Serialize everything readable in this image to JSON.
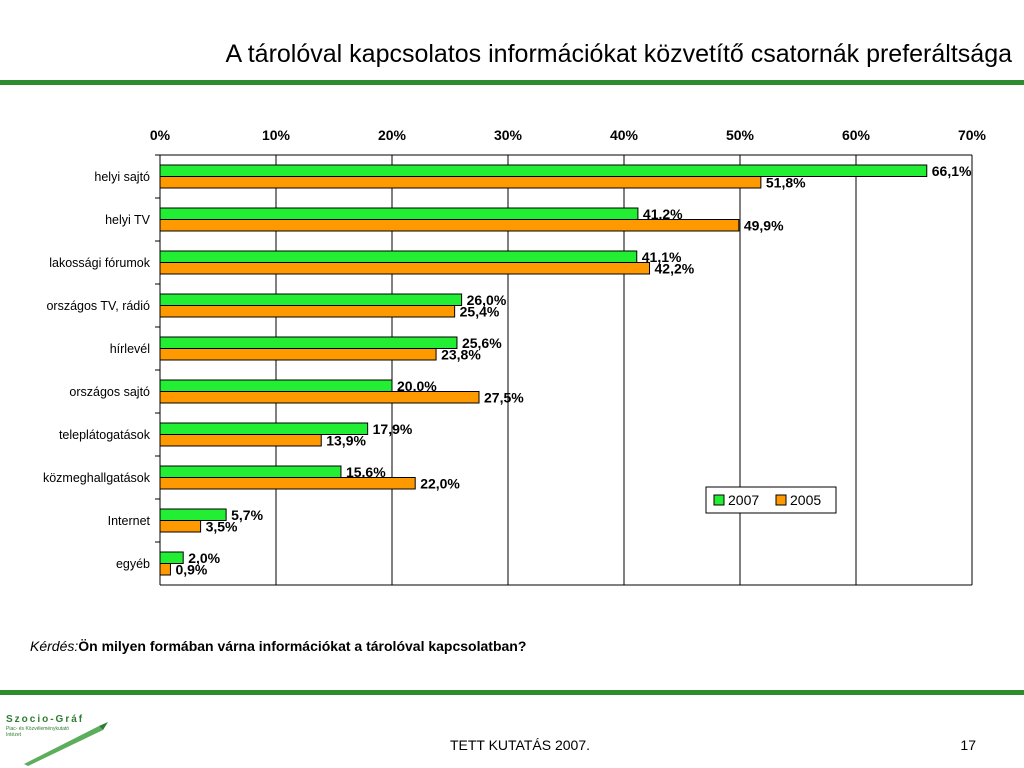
{
  "slide": {
    "title": "A tárolóval kapcsolatos információkat közvetítő csatornák preferáltsága",
    "question_label": "Kérdés:",
    "question_text": "Ön milyen formában várna információkat a tárolóval kapcsolatban?",
    "footer_center": "TETT KUTATÁS 2007.",
    "page_number": "17",
    "logo_name": "Szocio-Gráf",
    "logo_subtitle": "Piac- és Közvéleménykutató Intézet"
  },
  "colors": {
    "accent_green_rule": "#2e8b2e",
    "series_2007": "#22ee33",
    "series_2005": "#ff9900"
  },
  "chart_data": {
    "type": "bar",
    "orientation": "horizontal",
    "categories": [
      "helyi sajtó",
      "helyi TV",
      "lakossági fórumok",
      "országos TV, rádió",
      "hírlevél",
      "országos sajtó",
      "teleplátogatások",
      "közmeghallgatások",
      "Internet",
      "egyéb"
    ],
    "series": [
      {
        "name": "2007",
        "values": [
          66.1,
          41.2,
          41.1,
          26.0,
          25.6,
          20.0,
          17.9,
          15.6,
          5.7,
          2.0
        ],
        "labels": [
          "66,1%",
          "41,2%",
          "41,1%",
          "26,0%",
          "25,6%",
          "20,0%",
          "17,9%",
          "15,6%",
          "5,7%",
          "2,0%"
        ]
      },
      {
        "name": "2005",
        "values": [
          51.8,
          49.9,
          42.2,
          25.4,
          23.8,
          27.5,
          13.9,
          22.0,
          3.5,
          0.9
        ],
        "labels": [
          "51,8%",
          "49,9%",
          "42,2%",
          "25,4%",
          "23,8%",
          "27,5%",
          "13,9%",
          "22,0%",
          "3,5%",
          "0,9%"
        ]
      }
    ],
    "xlim": [
      0,
      70
    ],
    "ticks": [
      0,
      10,
      20,
      30,
      40,
      50,
      60,
      70
    ],
    "tick_labels": [
      "0%",
      "10%",
      "20%",
      "30%",
      "40%",
      "50%",
      "60%",
      "70%"
    ],
    "axis_position": "top",
    "grid": true,
    "legend": {
      "placement": "right",
      "entries": [
        "2007",
        "2005"
      ]
    }
  }
}
